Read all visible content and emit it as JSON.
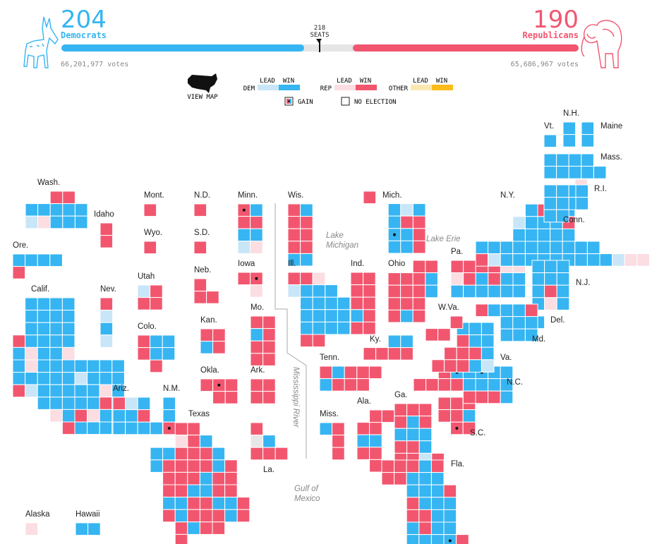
{
  "colors": {
    "dem_win": "#36b5f2",
    "dem_lead": "#c8e6f7",
    "rep_win": "#f2566f",
    "rep_lead": "#fbdde2",
    "other_lead": "#fbe7b0",
    "other_win": "#fbbb18",
    "tossup": "#e7e7e7",
    "bar_bg": "#e6e6e6"
  },
  "header": {
    "dem_seats": "204",
    "dem_name": "Democrats",
    "dem_votes": "66,201,977 votes",
    "rep_seats": "190",
    "rep_name": "Republicans",
    "rep_votes": "65,686,967 votes",
    "threshold_number": "218",
    "threshold_unit": "SEATS",
    "total_seats": 435,
    "dem_icon": "donkey-icon",
    "rep_icon": "elephant-icon"
  },
  "legend": {
    "view_map": "VIEW MAP",
    "lead": "LEAD",
    "win": "WIN",
    "dem": "DEM",
    "rep": "REP",
    "other": "OTHER",
    "gain": "GAIN",
    "no_election": "NO ELECTION"
  },
  "states": [
    {
      "name": "Wash.",
      "code": "WA"
    },
    {
      "name": "Ore.",
      "code": "OR"
    },
    {
      "name": "Calif.",
      "code": "CA"
    },
    {
      "name": "Idaho",
      "code": "ID"
    },
    {
      "name": "Nev.",
      "code": "NV"
    },
    {
      "name": "Mont.",
      "code": "MT"
    },
    {
      "name": "Wyo.",
      "code": "WY"
    },
    {
      "name": "Utah",
      "code": "UT"
    },
    {
      "name": "Colo.",
      "code": "CO"
    },
    {
      "name": "Ariz.",
      "code": "AZ"
    },
    {
      "name": "N.M.",
      "code": "NM"
    },
    {
      "name": "N.D.",
      "code": "ND"
    },
    {
      "name": "S.D.",
      "code": "SD"
    },
    {
      "name": "Neb.",
      "code": "NE"
    },
    {
      "name": "Kan.",
      "code": "KS"
    },
    {
      "name": "Okla.",
      "code": "OK"
    },
    {
      "name": "Texas",
      "code": "TX"
    },
    {
      "name": "Minn.",
      "code": "MN"
    },
    {
      "name": "Iowa",
      "code": "IA"
    },
    {
      "name": "Mo.",
      "code": "MO"
    },
    {
      "name": "Ark.",
      "code": "AR"
    },
    {
      "name": "La.",
      "code": "LA"
    },
    {
      "name": "Wis.",
      "code": "WI"
    },
    {
      "name": "Ill.",
      "code": "IL"
    },
    {
      "name": "Mich.",
      "code": "MI"
    },
    {
      "name": "Ind.",
      "code": "IN"
    },
    {
      "name": "Ohio",
      "code": "OH"
    },
    {
      "name": "Ky.",
      "code": "KY"
    },
    {
      "name": "Tenn.",
      "code": "TN"
    },
    {
      "name": "Miss.",
      "code": "MS"
    },
    {
      "name": "Ala.",
      "code": "AL"
    },
    {
      "name": "Ga.",
      "code": "GA"
    },
    {
      "name": "Fla.",
      "code": "FL"
    },
    {
      "name": "S.C.",
      "code": "SC"
    },
    {
      "name": "N.C.",
      "code": "NC"
    },
    {
      "name": "Va.",
      "code": "VA"
    },
    {
      "name": "W.Va.",
      "code": "WV"
    },
    {
      "name": "Pa.",
      "code": "PA"
    },
    {
      "name": "N.Y.",
      "code": "NY"
    },
    {
      "name": "N.J.",
      "code": "NJ"
    },
    {
      "name": "Del.",
      "code": "DE"
    },
    {
      "name": "Md.",
      "code": "MD"
    },
    {
      "name": "Conn.",
      "code": "CT"
    },
    {
      "name": "R.I.",
      "code": "RI"
    },
    {
      "name": "Mass.",
      "code": "MA"
    },
    {
      "name": "Vt.",
      "code": "VT"
    },
    {
      "name": "N.H.",
      "code": "NH"
    },
    {
      "name": "Maine",
      "code": "ME"
    },
    {
      "name": "Alaska",
      "code": "AK"
    },
    {
      "name": "Hawaii",
      "code": "HI"
    }
  ],
  "geo_labels": {
    "lake_michigan": [
      "Lake",
      "Michigan"
    ],
    "lake_erie": "Lake Erie",
    "mississippi": "Mississippi River",
    "gulf": [
      "Gulf of",
      "Mexico"
    ]
  }
}
